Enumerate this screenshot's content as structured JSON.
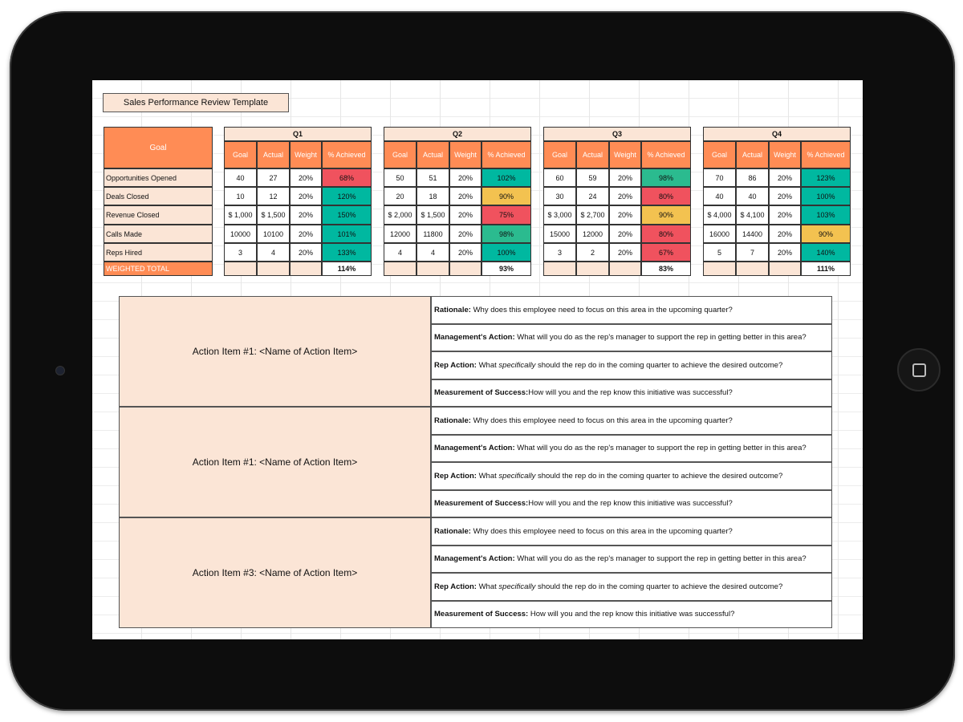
{
  "title": "Sales Performance Review Template",
  "goal_header": "Goal",
  "column_headers": [
    "Goal",
    "Actual",
    "Weight",
    "% Achieved"
  ],
  "row_labels": [
    "Opportunities Opened",
    "Deals Closed",
    "Revenue Closed",
    "Calls Made",
    "Reps Hired"
  ],
  "total_label": "WEIGHTED TOTAL",
  "status_colors": {
    "red": "#f0525e",
    "teal": "#00b8a0",
    "green": "#2bbb8f",
    "yellow": "#f3c250"
  },
  "quarters": [
    {
      "name": "Q1",
      "total": "114%",
      "rows": [
        {
          "goal": "40",
          "actual": "27",
          "weight": "20%",
          "achieved": "68%",
          "color": "red"
        },
        {
          "goal": "10",
          "actual": "12",
          "weight": "20%",
          "achieved": "120%",
          "color": "teal"
        },
        {
          "goal": "$ 1,000",
          "actual": "$ 1,500",
          "weight": "20%",
          "achieved": "150%",
          "color": "teal"
        },
        {
          "goal": "10000",
          "actual": "10100",
          "weight": "20%",
          "achieved": "101%",
          "color": "teal"
        },
        {
          "goal": "3",
          "actual": "4",
          "weight": "20%",
          "achieved": "133%",
          "color": "teal"
        }
      ]
    },
    {
      "name": "Q2",
      "total": "93%",
      "rows": [
        {
          "goal": "50",
          "actual": "51",
          "weight": "20%",
          "achieved": "102%",
          "color": "teal"
        },
        {
          "goal": "20",
          "actual": "18",
          "weight": "20%",
          "achieved": "90%",
          "color": "yellow"
        },
        {
          "goal": "$ 2,000",
          "actual": "$ 1,500",
          "weight": "20%",
          "achieved": "75%",
          "color": "red"
        },
        {
          "goal": "12000",
          "actual": "11800",
          "weight": "20%",
          "achieved": "98%",
          "color": "green"
        },
        {
          "goal": "4",
          "actual": "4",
          "weight": "20%",
          "achieved": "100%",
          "color": "teal"
        }
      ]
    },
    {
      "name": "Q3",
      "total": "83%",
      "rows": [
        {
          "goal": "60",
          "actual": "59",
          "weight": "20%",
          "achieved": "98%",
          "color": "green"
        },
        {
          "goal": "30",
          "actual": "24",
          "weight": "20%",
          "achieved": "80%",
          "color": "red"
        },
        {
          "goal": "$ 3,000",
          "actual": "$ 2,700",
          "weight": "20%",
          "achieved": "90%",
          "color": "yellow"
        },
        {
          "goal": "15000",
          "actual": "12000",
          "weight": "20%",
          "achieved": "80%",
          "color": "red"
        },
        {
          "goal": "3",
          "actual": "2",
          "weight": "20%",
          "achieved": "67%",
          "color": "red"
        }
      ]
    },
    {
      "name": "Q4",
      "total": "111%",
      "rows": [
        {
          "goal": "70",
          "actual": "86",
          "weight": "20%",
          "achieved": "123%",
          "color": "teal"
        },
        {
          "goal": "40",
          "actual": "40",
          "weight": "20%",
          "achieved": "100%",
          "color": "teal"
        },
        {
          "goal": "$ 4,000",
          "actual": "$ 4,100",
          "weight": "20%",
          "achieved": "103%",
          "color": "teal"
        },
        {
          "goal": "16000",
          "actual": "14400",
          "weight": "20%",
          "achieved": "90%",
          "color": "yellow"
        },
        {
          "goal": "5",
          "actual": "7",
          "weight": "20%",
          "achieved": "140%",
          "color": "teal"
        }
      ]
    }
  ],
  "action_items": [
    {
      "name": "Action Item #1: <Name of Action Item>",
      "rows": [
        {
          "label": "Rationale:",
          "text": " Why does this employee need to focus on this area in the upcoming quarter?"
        },
        {
          "label": "Management's Action:",
          "text": " What will you do as the rep's manager to support the rep in getting better in this area?"
        },
        {
          "label": "Rep Action:",
          "text": " What ",
          "italic": "specifically",
          "text2": " should the rep do in the coming quarter to achieve the desired outcome?"
        },
        {
          "label": "Measurement of Success:",
          "text": "How will you and the rep know this initiative was successful?"
        }
      ]
    },
    {
      "name": "Action Item #1: <Name of Action Item>",
      "rows": [
        {
          "label": "Rationale:",
          "text": " Why does this employee need to focus on this area in the upcoming quarter?"
        },
        {
          "label": "Management's Action:",
          "text": " What will you do as the rep's manager to support the rep in getting better in this area?"
        },
        {
          "label": "Rep Action:",
          "text": " What ",
          "italic": "specifically",
          "text2": " should the rep do in the coming quarter to achieve the desired outcome?"
        },
        {
          "label": "Measurement of Success:",
          "text": "How will you and the rep know this initiative was successful?"
        }
      ]
    },
    {
      "name": "Action Item #3: <Name of Action Item>",
      "rows": [
        {
          "label": "Rationale:",
          "text": " Why does this employee need to focus on this area in the upcoming quarter?"
        },
        {
          "label": "Management's Action:",
          "text": " What will you do as the rep's manager to support the rep in getting better in this area?"
        },
        {
          "label": "Rep Action:",
          "text": " What ",
          "italic": "specifically",
          "text2": " should the rep do in the coming quarter to achieve the desired outcome?"
        },
        {
          "label": "Measurement of Success:",
          "text": " How will you and the rep know this initiative was successful?"
        }
      ]
    }
  ]
}
